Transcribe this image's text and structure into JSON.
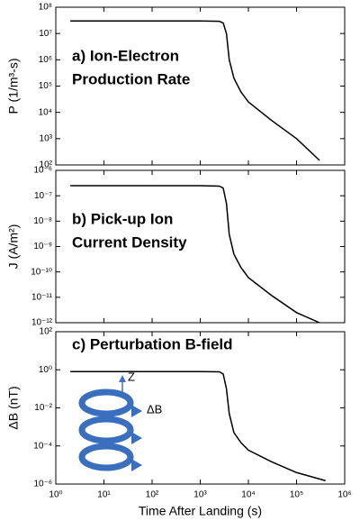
{
  "chart_data": [
    {
      "type": "line",
      "ylabel": "P (1/m³-s)",
      "annotation": [
        "a)  Ion-Electron",
        "Production Rate"
      ],
      "xlim": [
        1,
        1000000
      ],
      "xticks": [
        1,
        10,
        100,
        1000,
        10000,
        100000,
        1000000
      ],
      "log_x": true,
      "log_y": true,
      "ylim": [
        100,
        100000000
      ],
      "yticks": [
        {
          "value": 100,
          "label": "10²"
        },
        {
          "value": 1000,
          "label": "10³"
        },
        {
          "value": 10000,
          "label": "10⁴"
        },
        {
          "value": 100000,
          "label": "10⁵"
        },
        {
          "value": 1000000,
          "label": "10⁶"
        },
        {
          "value": 10000000,
          "label": "10⁷"
        },
        {
          "value": 100000000,
          "label": "10⁸"
        }
      ],
      "x": [
        2,
        100,
        1000,
        2500,
        3000,
        3500,
        4000,
        5000,
        7000,
        10000,
        30000,
        100000,
        300000
      ],
      "series": [
        {
          "color": "#000000",
          "values": [
            30000000,
            30000000,
            30000000,
            29000000,
            25000000,
            10000000,
            1000000,
            200000,
            60000,
            25000,
            5000,
            1000,
            150
          ]
        }
      ]
    },
    {
      "type": "line",
      "ylabel": "J (A/m²)",
      "annotation": [
        "b) Pick-up Ion",
        "Current Density"
      ],
      "xlim": [
        1,
        1000000
      ],
      "xticks": [
        1,
        10,
        100,
        1000,
        10000,
        100000,
        1000000
      ],
      "log_x": true,
      "log_y": true,
      "ylim": [
        1e-12,
        1e-06
      ],
      "yticks": [
        {
          "value": 1e-12,
          "label": "10⁻¹²"
        },
        {
          "value": 1e-11,
          "label": "10⁻¹¹"
        },
        {
          "value": 1e-10,
          "label": "10⁻¹⁰"
        },
        {
          "value": 1e-09,
          "label": "10⁻⁹"
        },
        {
          "value": 1e-08,
          "label": "10⁻⁸"
        },
        {
          "value": 1e-07,
          "label": "10⁻⁷"
        },
        {
          "value": 1e-06,
          "label": "10⁻⁶"
        }
      ],
      "x": [
        2,
        100,
        1000,
        2500,
        3000,
        3500,
        4000,
        5000,
        7000,
        10000,
        30000,
        100000,
        300000
      ],
      "series": [
        {
          "color": "#000000",
          "values": [
            2.5e-07,
            2.5e-07,
            2.5e-07,
            2.4e-07,
            2e-07,
            5e-08,
            3e-09,
            5e-10,
            1.5e-10,
            6e-11,
            1.2e-11,
            2.5e-12,
            1e-12
          ]
        }
      ]
    },
    {
      "type": "line",
      "ylabel": "ΔB (nT)",
      "annotation": [
        "c) Perturbation B-field"
      ],
      "inset_labels": [
        "Z",
        "ΔB"
      ],
      "xlabel": "Time After Landing (s)",
      "xlim": [
        1,
        1000000
      ],
      "log_x": true,
      "log_y": true,
      "xticks": [
        {
          "value": 1,
          "label": "10⁰"
        },
        {
          "value": 10,
          "label": "10¹"
        },
        {
          "value": 100,
          "label": "10²"
        },
        {
          "value": 1000,
          "label": "10³"
        },
        {
          "value": 10000,
          "label": "10⁴"
        },
        {
          "value": 100000,
          "label": "10⁵"
        },
        {
          "value": 1000000,
          "label": "10⁶"
        }
      ],
      "ylim": [
        1e-06,
        100
      ],
      "yticks": [
        {
          "value": 1e-06,
          "label": "10⁻⁶"
        },
        {
          "value": 0.0001,
          "label": "10⁻⁴"
        },
        {
          "value": 0.01,
          "label": "10⁻²"
        },
        {
          "value": 1,
          "label": "10⁰"
        },
        {
          "value": 100,
          "label": "10²"
        }
      ],
      "x": [
        2,
        100,
        1000,
        2500,
        3000,
        3500,
        4000,
        5000,
        7000,
        10000,
        30000,
        100000,
        400000
      ],
      "series": [
        {
          "color": "#000000",
          "values": [
            0.8,
            0.8,
            0.8,
            0.78,
            0.6,
            0.1,
            0.005,
            0.0005,
            0.00015,
            6e-05,
            1.5e-05,
            4e-06,
            1.5e-06
          ]
        }
      ]
    }
  ]
}
